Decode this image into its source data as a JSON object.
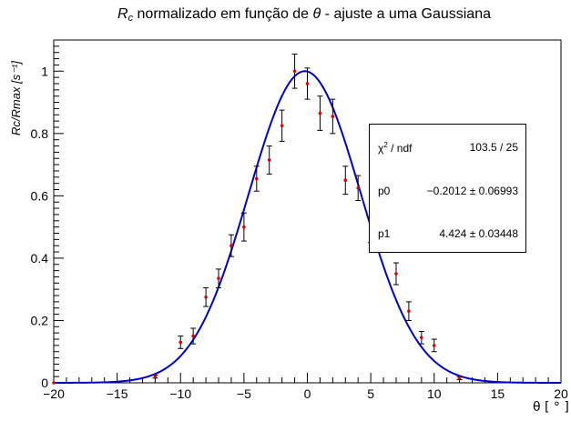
{
  "chart_data": {
    "type": "scatter",
    "title_prefix": "R",
    "title_sub": "c",
    "title_mid": " normalizado em função de ",
    "title_theta": "θ",
    "title_suffix": " - ajuste a uma Gaussiana",
    "xlabel": "θ  [ ° ]",
    "ylabel": "Rc/Rmax [s⁻¹]",
    "xlim": [
      -20,
      20
    ],
    "ylim": [
      0,
      1.1
    ],
    "x_ticks": [
      -20,
      -15,
      -10,
      -5,
      0,
      5,
      10,
      15,
      20
    ],
    "y_ticks": [
      0,
      0.2,
      0.4,
      0.6,
      0.8,
      1
    ],
    "y_tick_labels": [
      "0",
      "0.2",
      "0.4",
      "0.6",
      "0.8",
      "1"
    ],
    "series": [
      {
        "kind": "data-with-errors",
        "color": "#e00000",
        "points": [
          {
            "x": -20,
            "y": 0.0,
            "err": 0.0
          },
          {
            "x": -12,
            "y": 0.02,
            "err": 0.005
          },
          {
            "x": -10,
            "y": 0.13,
            "err": 0.02
          },
          {
            "x": -9,
            "y": 0.15,
            "err": 0.025
          },
          {
            "x": -8,
            "y": 0.275,
            "err": 0.03
          },
          {
            "x": -7,
            "y": 0.335,
            "err": 0.03
          },
          {
            "x": -6,
            "y": 0.44,
            "err": 0.035
          },
          {
            "x": -5,
            "y": 0.5,
            "err": 0.045
          },
          {
            "x": -4,
            "y": 0.655,
            "err": 0.04
          },
          {
            "x": -3,
            "y": 0.715,
            "err": 0.045
          },
          {
            "x": -2,
            "y": 0.825,
            "err": 0.05
          },
          {
            "x": -1,
            "y": 1.0,
            "err": 0.055
          },
          {
            "x": 0,
            "y": 0.96,
            "err": 0.05
          },
          {
            "x": 1,
            "y": 0.865,
            "err": 0.055
          },
          {
            "x": 2,
            "y": 0.855,
            "err": 0.055
          },
          {
            "x": 3,
            "y": 0.65,
            "err": 0.045
          },
          {
            "x": 4,
            "y": 0.625,
            "err": 0.04
          },
          {
            "x": 5,
            "y": 0.49,
            "err": 0.04
          },
          {
            "x": 7,
            "y": 0.35,
            "err": 0.035
          },
          {
            "x": 8,
            "y": 0.23,
            "err": 0.03
          },
          {
            "x": 9,
            "y": 0.145,
            "err": 0.02
          },
          {
            "x": 10,
            "y": 0.12,
            "err": 0.02
          },
          {
            "x": 12,
            "y": 0.015,
            "err": 0.005
          }
        ]
      },
      {
        "kind": "fit",
        "color": "#0000cc",
        "function": "gaussian",
        "mean": -0.2012,
        "sigma": 4.424,
        "amplitude": 1.0
      }
    ],
    "stats": {
      "rows": [
        {
          "key_base": "χ",
          "key_sup": "2",
          "key_rest": " / ndf",
          "value": "103.5 / 25"
        },
        {
          "key_base": "p0",
          "key_sup": "",
          "key_rest": "",
          "value": "−0.2012 ± 0.06993"
        },
        {
          "key_base": "p1",
          "key_sup": "",
          "key_rest": "",
          "value": "4.424 ± 0.03448"
        }
      ]
    },
    "grid": false,
    "stats_box_position": "right"
  }
}
